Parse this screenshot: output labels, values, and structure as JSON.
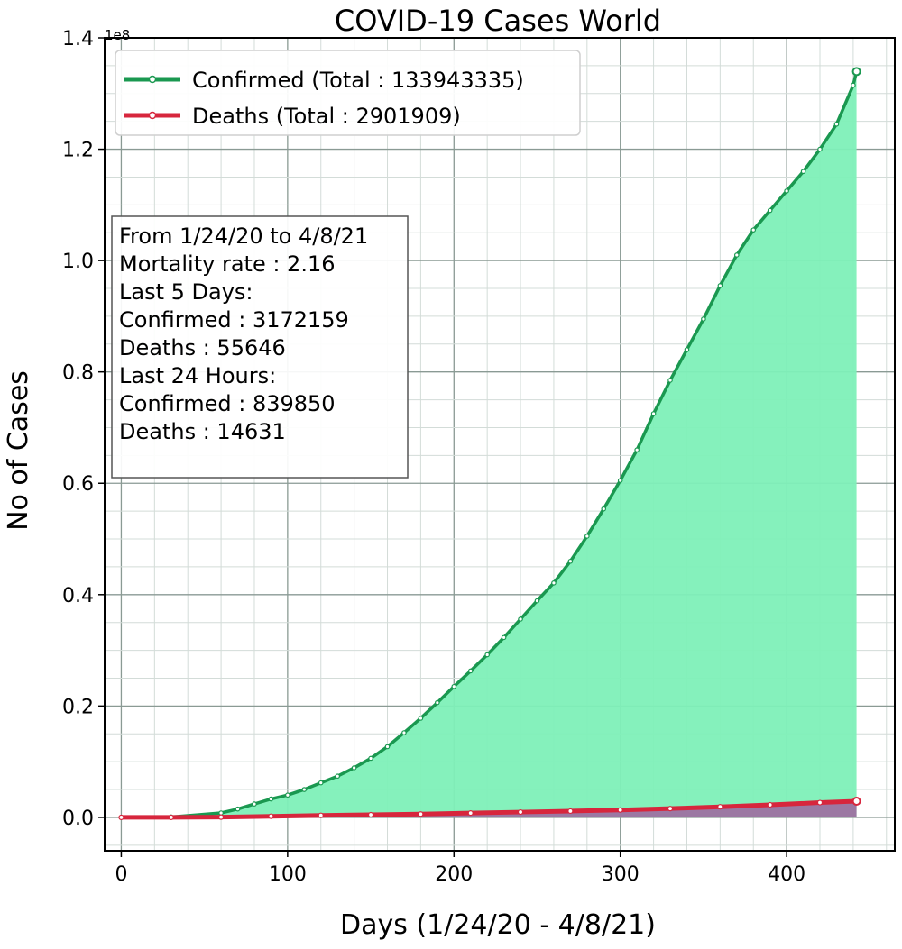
{
  "chart_data": {
    "type": "area",
    "title": "COVID-19 Cases World",
    "xlabel": "Days (1/24/20 - 4/8/21)",
    "ylabel": "No of Cases",
    "y_offset_label": "1e8",
    "xlim": [
      -10,
      465
    ],
    "ylim": [
      -6000000,
      140000000
    ],
    "x_ticks": [
      0,
      100,
      200,
      300,
      400
    ],
    "y_ticks": [
      0,
      20000000,
      40000000,
      60000000,
      80000000,
      100000000,
      120000000,
      140000000
    ],
    "y_tick_labels": [
      "0.0",
      "0.2",
      "0.4",
      "0.6",
      "0.8",
      "1.0",
      "1.2",
      "1.4"
    ],
    "grid": true,
    "minor_grid": true,
    "legend_position": "top-left",
    "series": [
      {
        "name": "Confirmed (Total : 133943335)",
        "color": "#1a9850",
        "fill": "#7ef0b8",
        "x": [
          0,
          30,
          60,
          70,
          80,
          90,
          100,
          110,
          120,
          130,
          140,
          150,
          160,
          170,
          180,
          190,
          200,
          210,
          220,
          230,
          240,
          250,
          260,
          270,
          280,
          290,
          300,
          310,
          320,
          330,
          340,
          350,
          360,
          370,
          380,
          390,
          400,
          410,
          420,
          430,
          440,
          442
        ],
        "y": [
          550,
          80000,
          800000,
          1500000,
          2400000,
          3300000,
          4000000,
          5000000,
          6200000,
          7400000,
          8900000,
          10600000,
          12700000,
          15200000,
          17800000,
          20600000,
          23500000,
          26300000,
          29200000,
          32300000,
          35600000,
          38900000,
          42100000,
          46000000,
          50500000,
          55400000,
          60500000,
          66000000,
          72500000,
          78500000,
          84000000,
          89500000,
          95500000,
          101000000,
          105500000,
          109000000,
          112500000,
          116000000,
          120000000,
          124500000,
          131500000,
          133943335
        ]
      },
      {
        "name": "Deaths (Total : 2901909)",
        "color": "#d7263d",
        "fill": "#9e6aa0",
        "x": [
          0,
          30,
          60,
          90,
          120,
          150,
          180,
          210,
          240,
          270,
          300,
          330,
          360,
          390,
          420,
          442
        ],
        "y": [
          17,
          3000,
          50000,
          200000,
          360000,
          480000,
          600000,
          780000,
          950000,
          1130000,
          1320000,
          1580000,
          1900000,
          2250000,
          2650000,
          2901909
        ]
      }
    ],
    "annotations": [
      "From 1/24/20 to 4/8/21",
      "Mortality rate : 2.16",
      "Last 5 Days:",
      "Confirmed : 3172159",
      "Deaths : 55646",
      "Last 24 Hours:",
      "Confirmed : 839850",
      "Deaths : 14631"
    ]
  }
}
